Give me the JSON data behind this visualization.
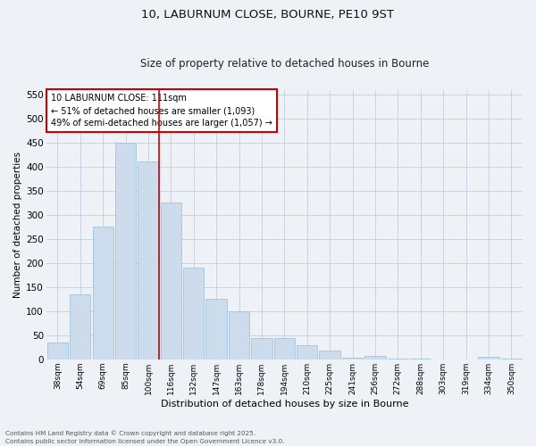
{
  "title_line1": "10, LABURNUM CLOSE, BOURNE, PE10 9ST",
  "title_line2": "Size of property relative to detached houses in Bourne",
  "xlabel": "Distribution of detached houses by size in Bourne",
  "ylabel": "Number of detached properties",
  "categories": [
    "38sqm",
    "54sqm",
    "69sqm",
    "85sqm",
    "100sqm",
    "116sqm",
    "132sqm",
    "147sqm",
    "163sqm",
    "178sqm",
    "194sqm",
    "210sqm",
    "225sqm",
    "241sqm",
    "256sqm",
    "272sqm",
    "288sqm",
    "303sqm",
    "319sqm",
    "334sqm",
    "350sqm"
  ],
  "values": [
    35,
    135,
    275,
    450,
    410,
    325,
    190,
    125,
    100,
    45,
    45,
    30,
    18,
    4,
    7,
    2,
    2,
    0,
    0,
    5,
    2
  ],
  "bar_color": "#ccdcec",
  "bar_edgecolor": "#9bbcd4",
  "vline_x_index": 4,
  "vline_color": "#cc0000",
  "annotation_text": "10 LABURNUM CLOSE: 111sqm\n← 51% of detached houses are smaller (1,093)\n49% of semi-detached houses are larger (1,057) →",
  "annotation_box_color": "#ffffff",
  "annotation_box_edgecolor": "#cc0000",
  "ylim": [
    0,
    560
  ],
  "yticks": [
    0,
    50,
    100,
    150,
    200,
    250,
    300,
    350,
    400,
    450,
    500,
    550
  ],
  "grid_color": "#c0d0e0",
  "background_color": "#eef2f7",
  "footer_line1": "Contains HM Land Registry data © Crown copyright and database right 2025.",
  "footer_line2": "Contains public sector information licensed under the Open Government Licence v3.0."
}
